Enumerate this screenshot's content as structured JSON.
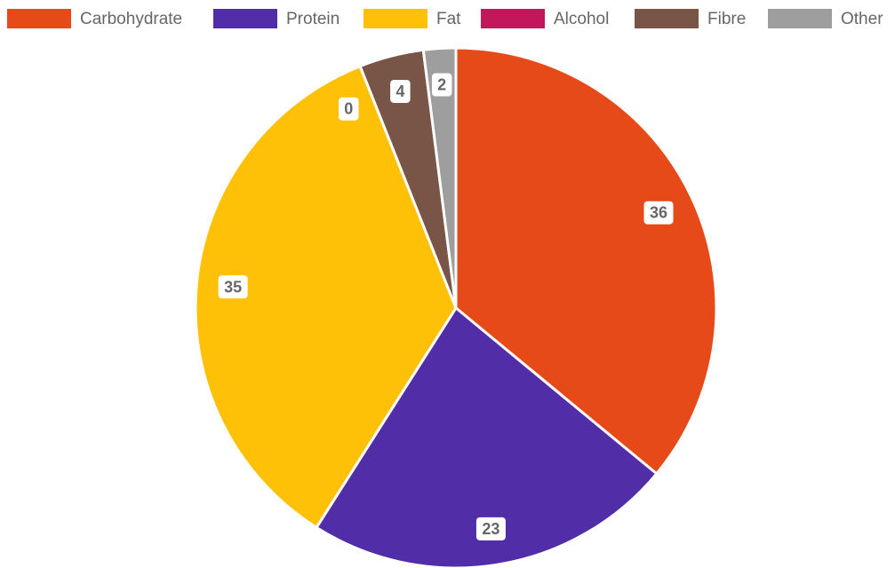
{
  "chart_data": {
    "type": "pie",
    "categories": [
      "Carbohydrate",
      "Protein",
      "Fat",
      "Alcohol",
      "Fibre",
      "Other"
    ],
    "values": [
      36,
      23,
      35,
      0,
      4,
      2
    ],
    "data_labels": [
      "36",
      "23",
      "35",
      "0",
      "4",
      "2"
    ],
    "colors": [
      "#e64a19",
      "#512da8",
      "#ffc107",
      "#c2185b",
      "#795548",
      "#9e9e9e"
    ],
    "legend": {
      "position": "top",
      "entries": [
        "Carbohydrate",
        "Protein",
        "Fat",
        "Alcohol",
        "Fibre",
        "Other"
      ]
    },
    "start_angle": "top",
    "direction": "clockwise"
  }
}
